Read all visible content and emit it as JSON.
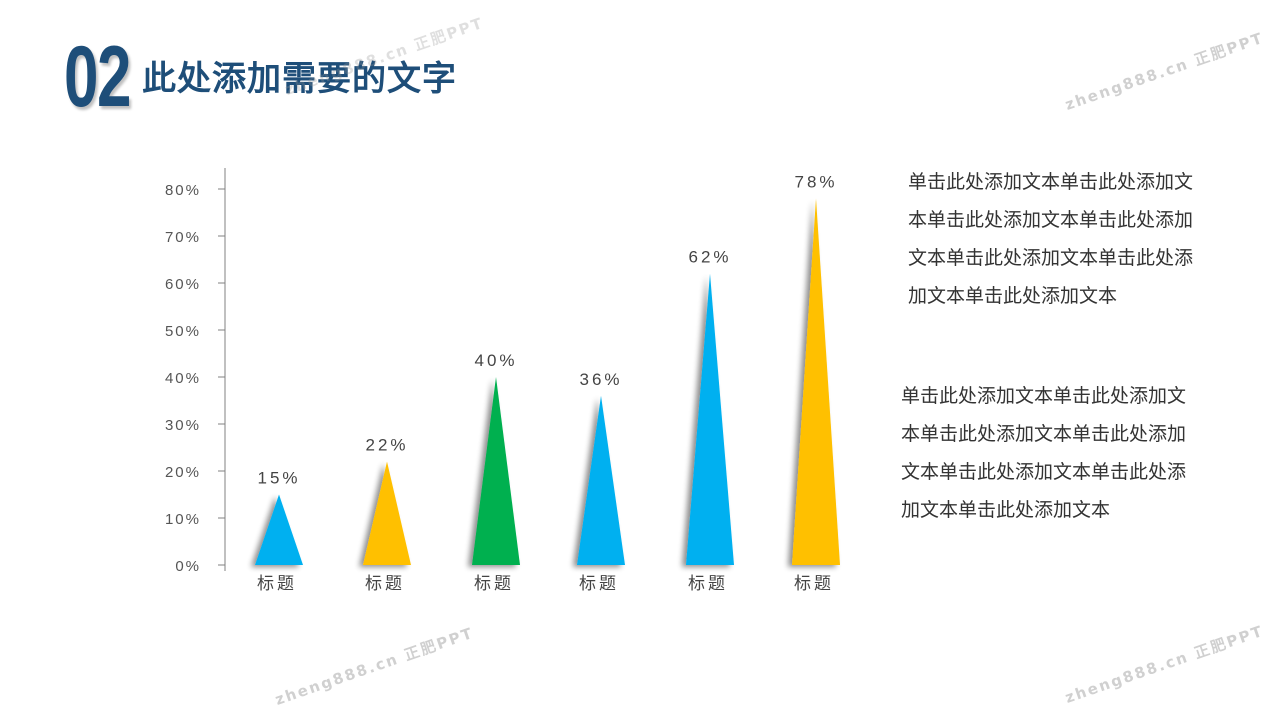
{
  "header": {
    "number": "02",
    "title": "此处添加需要的文字"
  },
  "watermark": {
    "text": "zheng888.cn 正肥PPT"
  },
  "colors": {
    "title": "#1e4e79",
    "blue": "#00b0f0",
    "yellow": "#ffc000",
    "green": "#00b050",
    "axis": "#808080",
    "text": "#333333"
  },
  "chart_data": {
    "type": "bar",
    "categories": [
      "标题",
      "标题",
      "标题",
      "标题",
      "标题",
      "标题"
    ],
    "values": [
      15,
      22,
      40,
      36,
      62,
      78
    ],
    "value_labels": [
      "15%",
      "22%",
      "40%",
      "36%",
      "62%",
      "78%"
    ],
    "bar_colors": [
      "#00b0f0",
      "#ffc000",
      "#00b050",
      "#00b0f0",
      "#00b0f0",
      "#ffc000"
    ],
    "y_ticks": [
      "0%",
      "10%",
      "20%",
      "30%",
      "40%",
      "50%",
      "60%",
      "70%",
      "80%"
    ],
    "ylim": [
      0,
      80
    ],
    "mark_shape": "triangle",
    "grid": false,
    "legend": "none"
  },
  "side_text": {
    "paragraph1": "单击此处添加文本单击此处添加文本单击此处添加文本单击此处添加文本单击此处添加文本单击此处添加文本单击此处添加文本",
    "paragraph2": "单击此处添加文本单击此处添加文本单击此处添加文本单击此处添加文本单击此处添加文本单击此处添加文本单击此处添加文本"
  }
}
